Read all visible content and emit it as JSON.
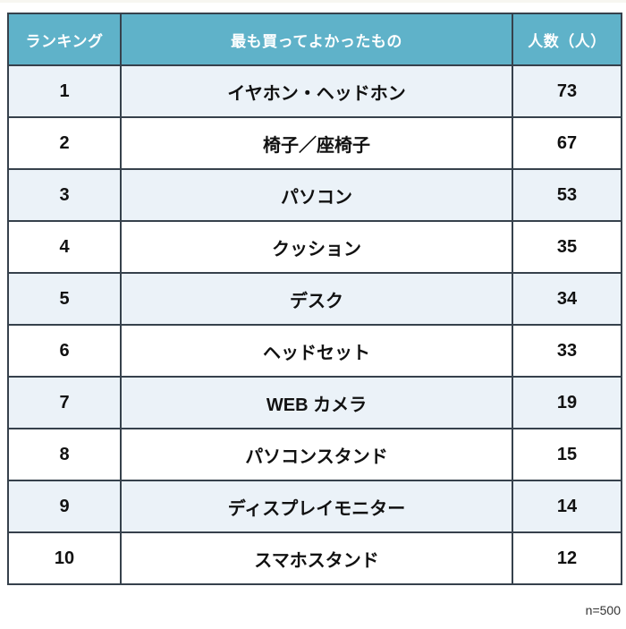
{
  "chart_data": {
    "type": "table",
    "columns": [
      "ランキング",
      "最も買ってよかったもの",
      "人数（人）"
    ],
    "rows": [
      {
        "rank": "1",
        "item": "イヤホン・ヘッドホン",
        "count": "73"
      },
      {
        "rank": "2",
        "item": "椅子／座椅子",
        "count": "67"
      },
      {
        "rank": "3",
        "item": "パソコン",
        "count": "53"
      },
      {
        "rank": "4",
        "item": "クッション",
        "count": "35"
      },
      {
        "rank": "5",
        "item": "デスク",
        "count": "34"
      },
      {
        "rank": "6",
        "item": "ヘッドセット",
        "count": "33"
      },
      {
        "rank": "7",
        "item": "WEB カメラ",
        "count": "19"
      },
      {
        "rank": "8",
        "item": "パソコンスタンド",
        "count": "15"
      },
      {
        "rank": "9",
        "item": "ディスプレイモニター",
        "count": "14"
      },
      {
        "rank": "10",
        "item": "スマホスタンド",
        "count": "12"
      }
    ],
    "note": "n=500"
  },
  "colors": {
    "header_bg": "#5fb2c9",
    "header_text": "#ffffff",
    "row_alt_bg": "#ebf2f8",
    "row_bg": "#ffffff",
    "border": "#36414c",
    "body_text": "#111111",
    "note_text": "#333333"
  }
}
